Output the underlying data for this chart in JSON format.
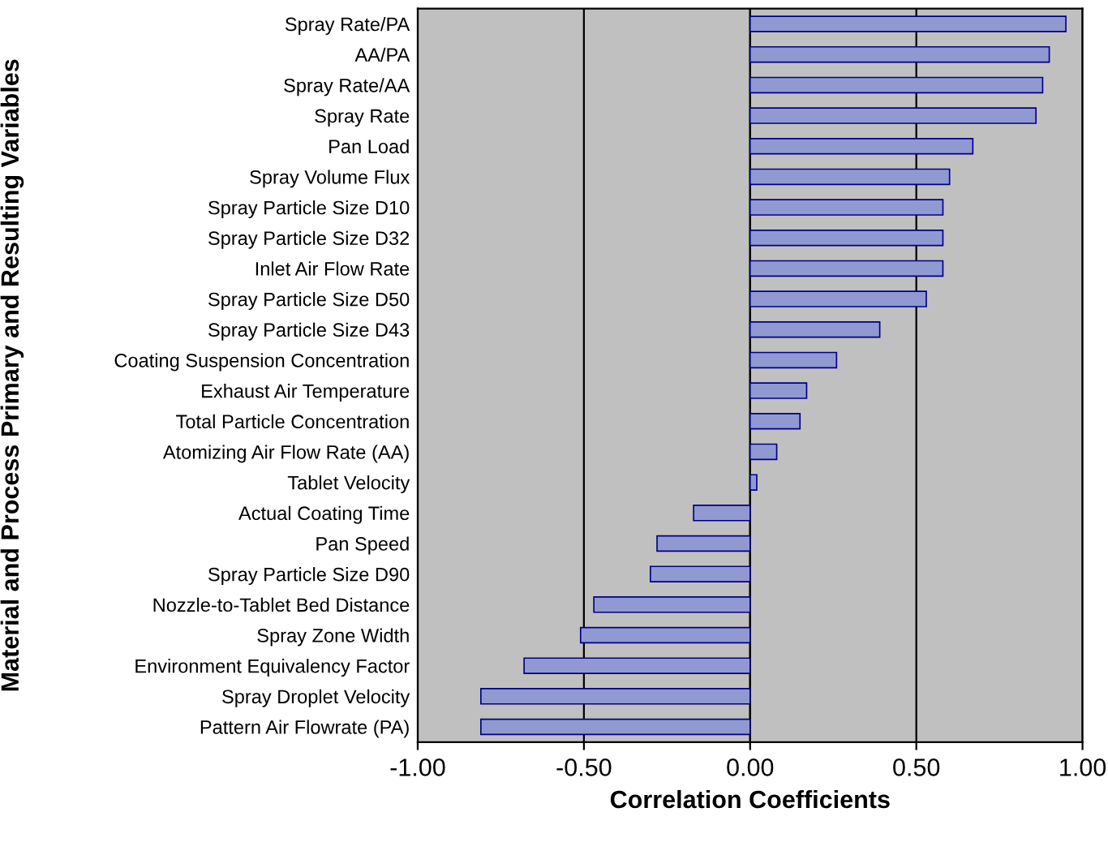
{
  "chart_data": {
    "type": "bar",
    "orientation": "horizontal",
    "xlabel": "Correlation Coefficients",
    "ylabel": "Material and Process Primary and Resulting Variables",
    "categories": [
      "Spray Rate/PA",
      "AA/PA",
      "Spray Rate/AA",
      "Spray Rate",
      "Pan Load",
      "Spray Volume Flux",
      "Spray Particle Size D10",
      "Spray Particle Size D32",
      "Inlet Air Flow Rate",
      "Spray Particle Size D50",
      "Spray Particle Size D43",
      "Coating Suspension Concentration",
      "Exhaust Air Temperature",
      "Total Particle Concentration",
      "Atomizing Air Flow Rate (AA)",
      "Tablet Velocity",
      "Actual Coating Time",
      "Pan Speed",
      "Spray Particle Size D90",
      "Nozzle-to-Tablet Bed Distance",
      "Spray Zone Width",
      "Environment Equivalency Factor",
      "Spray Droplet Velocity",
      "Pattern Air Flowrate (PA)"
    ],
    "values": [
      0.95,
      0.9,
      0.88,
      0.86,
      0.67,
      0.6,
      0.58,
      0.58,
      0.58,
      0.53,
      0.39,
      0.26,
      0.17,
      0.15,
      0.08,
      0.02,
      -0.17,
      -0.28,
      -0.3,
      -0.47,
      -0.51,
      -0.68,
      -0.81,
      -0.81
    ],
    "color": "#9199d3",
    "xlim": [
      -1,
      1
    ],
    "xticks": [
      {
        "value": -1,
        "label": "-1.00"
      },
      {
        "value": -0.5,
        "label": "-0.50"
      },
      {
        "value": 0,
        "label": "0.00"
      },
      {
        "value": 0.5,
        "label": "0.50"
      },
      {
        "value": 1,
        "label": "1.00"
      }
    ],
    "grid": "x",
    "legend": false
  }
}
